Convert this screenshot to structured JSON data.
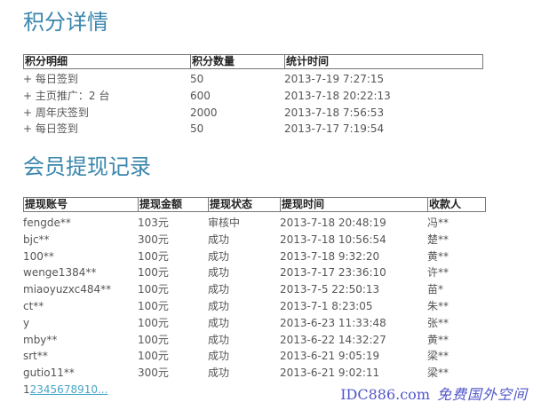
{
  "points": {
    "title": "积分详情",
    "headers": [
      "积分明细",
      "积分数量",
      "统计时间"
    ],
    "rows": [
      [
        "+ 每日签到",
        "50",
        "2013-7-19 7:27:15"
      ],
      [
        "+ 主页推广：2 台",
        "600",
        "2013-7-18 20:22:13"
      ],
      [
        "+ 周年庆签到",
        "2000",
        "2013-7-18 7:56:53"
      ],
      [
        "+ 每日签到",
        "50",
        "2013-7-17 7:19:54"
      ]
    ]
  },
  "withdraw": {
    "title": "会员提现记录",
    "headers": [
      "提现账号",
      "提现金额",
      "提现状态",
      "提现时间",
      "收款人"
    ],
    "rows": [
      [
        "fengde**",
        "103元",
        "审核中",
        "2013-7-18 20:48:19",
        "冯**"
      ],
      [
        "bjc**",
        "300元",
        "成功",
        "2013-7-18 10:56:54",
        "楚**"
      ],
      [
        "100**",
        "100元",
        "成功",
        "2013-7-18 9:32:20",
        "黄**"
      ],
      [
        "wenge1384**",
        "100元",
        "成功",
        "2013-7-17 23:36:10",
        "许**"
      ],
      [
        "miaoyuzxc484**",
        "100元",
        "成功",
        "2013-7-5 22:50:13",
        "苗*"
      ],
      [
        "ct**",
        "100元",
        "成功",
        "2013-7-1 8:23:05",
        "朱**"
      ],
      [
        "y",
        "100元",
        "成功",
        "2013-6-23 11:33:48",
        "张**"
      ],
      [
        "mby**",
        "100元",
        "成功",
        "2013-6-22 14:32:27",
        "黄**"
      ],
      [
        "srt**",
        "100元",
        "成功",
        "2013-6-21 9:05:19",
        "梁**"
      ],
      [
        "gutio11**",
        "300元",
        "成功",
        "2013-6-21 9:02:11",
        "梁**"
      ]
    ]
  },
  "pagination": {
    "current": "1",
    "links": "2345678910..."
  },
  "watermark": {
    "line1": "IDC886.com",
    "line2": "免费国外空间",
    "color": "#4f55c8"
  }
}
